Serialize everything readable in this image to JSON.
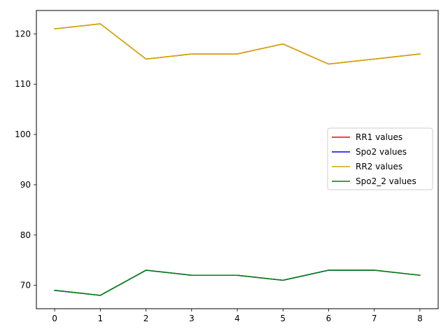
{
  "chart_data": {
    "type": "line",
    "title": "",
    "xlabel": "",
    "ylabel": "",
    "x": [
      0,
      1,
      2,
      3,
      4,
      5,
      6,
      7,
      8
    ],
    "xlim": [
      -0.4,
      8.4
    ],
    "ylim": [
      65.35,
      124.65
    ],
    "xticks": [
      0,
      1,
      2,
      3,
      4,
      5,
      6,
      7,
      8
    ],
    "yticks": [
      70,
      80,
      90,
      100,
      110,
      120
    ],
    "grid": false,
    "legend_position": "center-right",
    "series": [
      {
        "name": "RR1 values",
        "color": "#ff0000",
        "values": [
          121,
          122,
          115,
          116,
          116,
          118,
          114,
          115,
          116
        ]
      },
      {
        "name": "Spo2 values",
        "color": "#0000ff",
        "values": [
          69,
          68,
          73,
          72,
          72,
          71,
          73,
          73,
          72
        ]
      },
      {
        "name": "RR2 values",
        "color": "#ccaa00",
        "values": [
          121,
          122,
          115,
          116,
          116,
          118,
          114,
          115,
          116
        ]
      },
      {
        "name": "Spo2_2 values",
        "color": "#008000",
        "values": [
          69,
          68,
          73,
          72,
          72,
          71,
          73,
          73,
          72
        ]
      }
    ]
  }
}
